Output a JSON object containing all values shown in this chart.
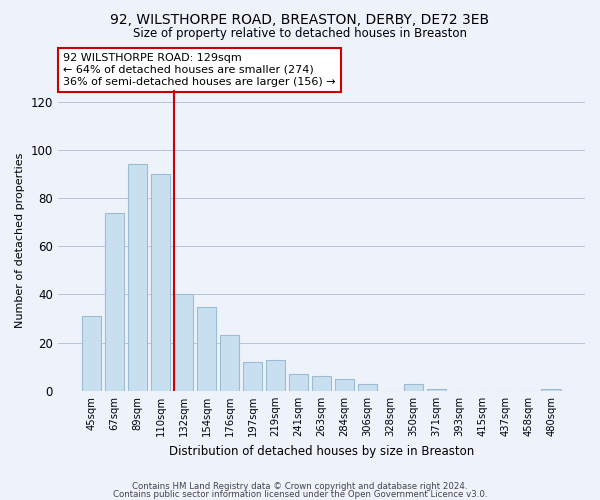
{
  "title": "92, WILSTHORPE ROAD, BREASTON, DERBY, DE72 3EB",
  "subtitle": "Size of property relative to detached houses in Breaston",
  "xlabel": "Distribution of detached houses by size in Breaston",
  "ylabel": "Number of detached properties",
  "bar_labels": [
    "45sqm",
    "67sqm",
    "89sqm",
    "110sqm",
    "132sqm",
    "154sqm",
    "176sqm",
    "197sqm",
    "219sqm",
    "241sqm",
    "263sqm",
    "284sqm",
    "306sqm",
    "328sqm",
    "350sqm",
    "371sqm",
    "393sqm",
    "415sqm",
    "437sqm",
    "458sqm",
    "480sqm"
  ],
  "bar_values": [
    31,
    74,
    94,
    90,
    40,
    35,
    23,
    12,
    13,
    7,
    6,
    5,
    3,
    0,
    3,
    1,
    0,
    0,
    0,
    0,
    1
  ],
  "bar_color": "#c8dff0",
  "bar_edge_color": "#9bbdd4",
  "vline_color": "#cc0000",
  "annotation_text": "92 WILSTHORPE ROAD: 129sqm\n← 64% of detached houses are smaller (274)\n36% of semi-detached houses are larger (156) →",
  "annotation_box_color": "white",
  "annotation_box_edge_color": "#cc0000",
  "ylim": [
    0,
    125
  ],
  "yticks": [
    0,
    20,
    40,
    60,
    80,
    100,
    120
  ],
  "footer_line1": "Contains HM Land Registry data © Crown copyright and database right 2024.",
  "footer_line2": "Contains public sector information licensed under the Open Government Licence v3.0.",
  "background_color": "#eef2fb",
  "grid_color": "#b8c4d8"
}
